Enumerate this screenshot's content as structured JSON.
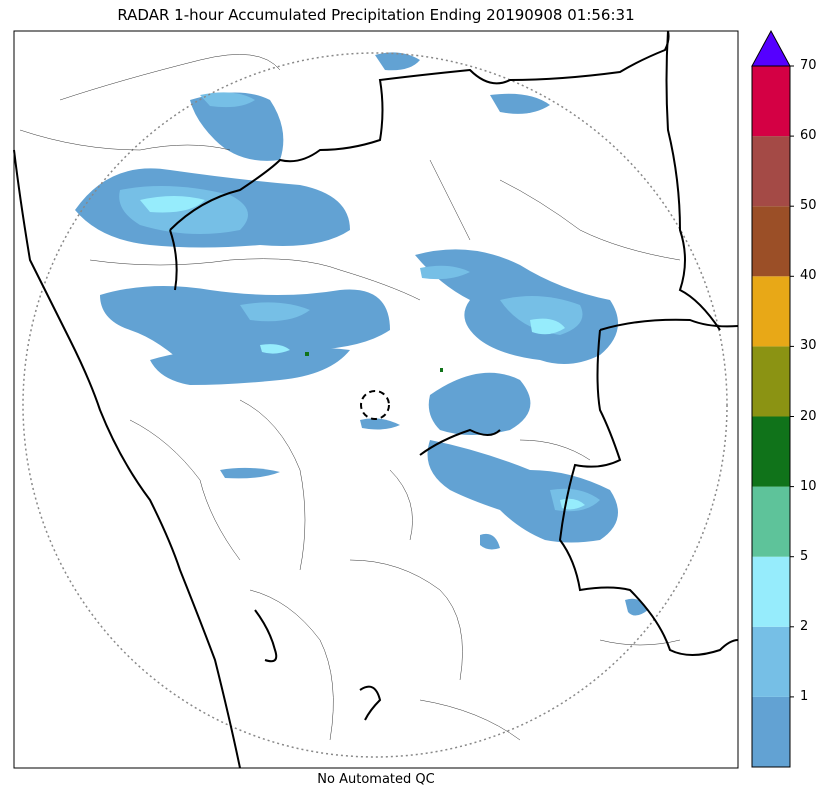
{
  "title": "RADAR 1-hour Accumulated Precipitation Ending 20190908 01:56:31",
  "footer": "No Automated QC",
  "colorbar": {
    "bins": [
      {
        "color": "#62a2d3",
        "label": "1"
      },
      {
        "color": "#76bfe6",
        "label": "2"
      },
      {
        "color": "#96ecfc",
        "label": "5"
      },
      {
        "color": "#5ec39a",
        "label": "10"
      },
      {
        "color": "#10731a",
        "label": "20"
      },
      {
        "color": "#8b9313",
        "label": "30"
      },
      {
        "color": "#e8a817",
        "label": "40"
      },
      {
        "color": "#9b4f27",
        "label": "50"
      },
      {
        "color": "#a44a46",
        "label": "60"
      },
      {
        "color": "#d40044",
        "label": "70"
      }
    ],
    "extend_color": "#5500ff",
    "top_label": "70",
    "bottom_bin_label": ""
  }
}
